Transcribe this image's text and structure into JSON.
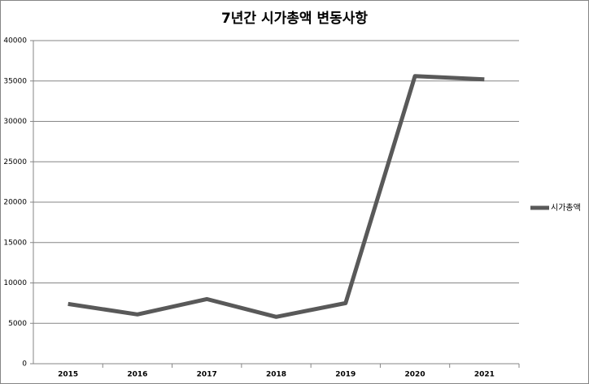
{
  "chart_data": {
    "type": "line",
    "title": "7년간 시가총액 변동사항",
    "categories": [
      "2015",
      "2016",
      "2017",
      "2018",
      "2019",
      "2020",
      "2021"
    ],
    "series": [
      {
        "name": "시가총액",
        "color": "#595959",
        "values": [
          7400,
          6100,
          8000,
          5800,
          7500,
          35600,
          35200
        ]
      }
    ],
    "ylim": [
      0,
      40000
    ],
    "yticks": [
      0,
      5000,
      10000,
      15000,
      20000,
      25000,
      30000,
      35000,
      40000
    ],
    "grid": true,
    "legend": "right"
  }
}
